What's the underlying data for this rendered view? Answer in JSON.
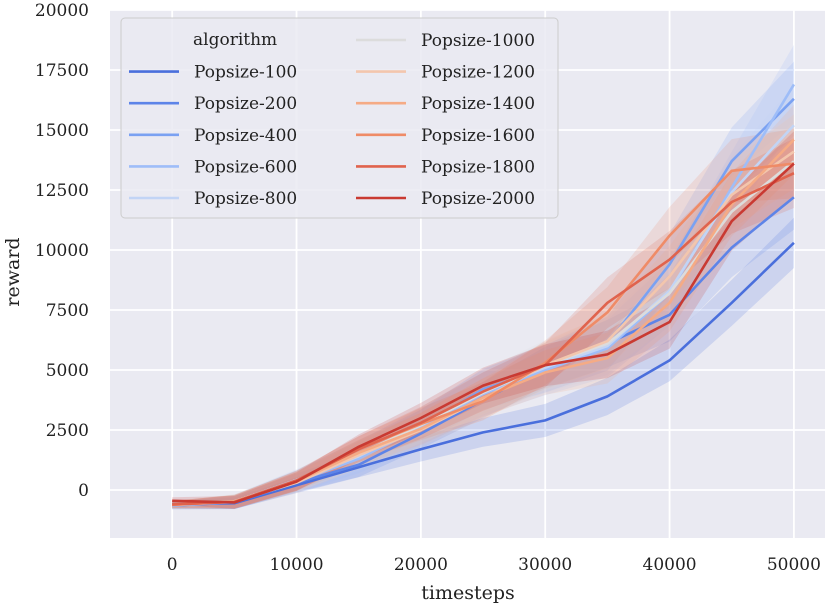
{
  "chart_data": {
    "type": "line",
    "title": "",
    "xlabel": "timesteps",
    "ylabel": "reward",
    "xlim": [
      -5000,
      52500
    ],
    "ylim": [
      -2000,
      20000
    ],
    "xticks": [
      0,
      10000,
      20000,
      30000,
      40000,
      50000
    ],
    "xtick_labels": [
      "0",
      "10000",
      "20000",
      "30000",
      "40000",
      "50000"
    ],
    "yticks": [
      0,
      2500,
      5000,
      7500,
      10000,
      12500,
      15000,
      17500,
      20000
    ],
    "ytick_labels": [
      "0",
      "2500",
      "5000",
      "7500",
      "10000",
      "12500",
      "15000",
      "17500",
      "20000"
    ],
    "grid": true,
    "legend_title": "algorithm",
    "legend_position": "top-left",
    "x": [
      0,
      5000,
      10000,
      15000,
      20000,
      25000,
      30000,
      35000,
      40000,
      45000,
      50000
    ],
    "series": [
      {
        "name": "Popsize-100",
        "color": "#4a6fdc",
        "values": [
          -600,
          -550,
          200,
          950,
          1700,
          2400,
          2900,
          3900,
          5400,
          7800,
          10300
        ],
        "band": 900
      },
      {
        "name": "Popsize-200",
        "color": "#5d84e8",
        "values": [
          -650,
          -520,
          300,
          1050,
          2350,
          3750,
          5100,
          6100,
          7300,
          10100,
          12200
        ],
        "band": 1200
      },
      {
        "name": "Popsize-400",
        "color": "#7aa1f2",
        "values": [
          -650,
          -500,
          400,
          1500,
          2650,
          4200,
          5050,
          6100,
          9400,
          13700,
          16300
        ],
        "band": 1400
      },
      {
        "name": "Popsize-600",
        "color": "#9ebdf8",
        "values": [
          -640,
          -500,
          350,
          1300,
          2600,
          4000,
          5000,
          5900,
          8200,
          12600,
          16900
        ],
        "band": 1500
      },
      {
        "name": "Popsize-800",
        "color": "#c2d4f5",
        "values": [
          -630,
          -490,
          420,
          1400,
          2700,
          4100,
          5100,
          6000,
          8300,
          12400,
          15200
        ],
        "band": 1500
      },
      {
        "name": "Popsize-1000",
        "color": "#dcdcdc",
        "values": [
          -620,
          -480,
          380,
          1500,
          2700,
          4050,
          5200,
          6100,
          8200,
          11600,
          13700
        ],
        "band": 1500
      },
      {
        "name": "Popsize-1200",
        "color": "#f3c6ad",
        "values": [
          -630,
          -470,
          300,
          1450,
          2500,
          3800,
          5200,
          6200,
          8900,
          12300,
          14100
        ],
        "band": 1400
      },
      {
        "name": "Popsize-1400",
        "color": "#f5ab85",
        "values": [
          -620,
          -480,
          360,
          1550,
          2550,
          3850,
          4900,
          5500,
          7800,
          11900,
          14600
        ],
        "band": 1300
      },
      {
        "name": "Popsize-1600",
        "color": "#ef8b67",
        "values": [
          -610,
          -490,
          380,
          1700,
          2750,
          3700,
          5300,
          7400,
          10600,
          13300,
          13600
        ],
        "band": 1300
      },
      {
        "name": "Popsize-1800",
        "color": "#e0634d",
        "values": [
          -600,
          -500,
          400,
          1700,
          2800,
          4100,
          5200,
          7800,
          9600,
          12000,
          13200
        ],
        "band": 1300
      },
      {
        "name": "Popsize-2000",
        "color": "#c93a32",
        "values": [
          -450,
          -520,
          350,
          1800,
          3000,
          4350,
          5200,
          5650,
          7000,
          11200,
          13600
        ],
        "band": 1200
      }
    ]
  }
}
